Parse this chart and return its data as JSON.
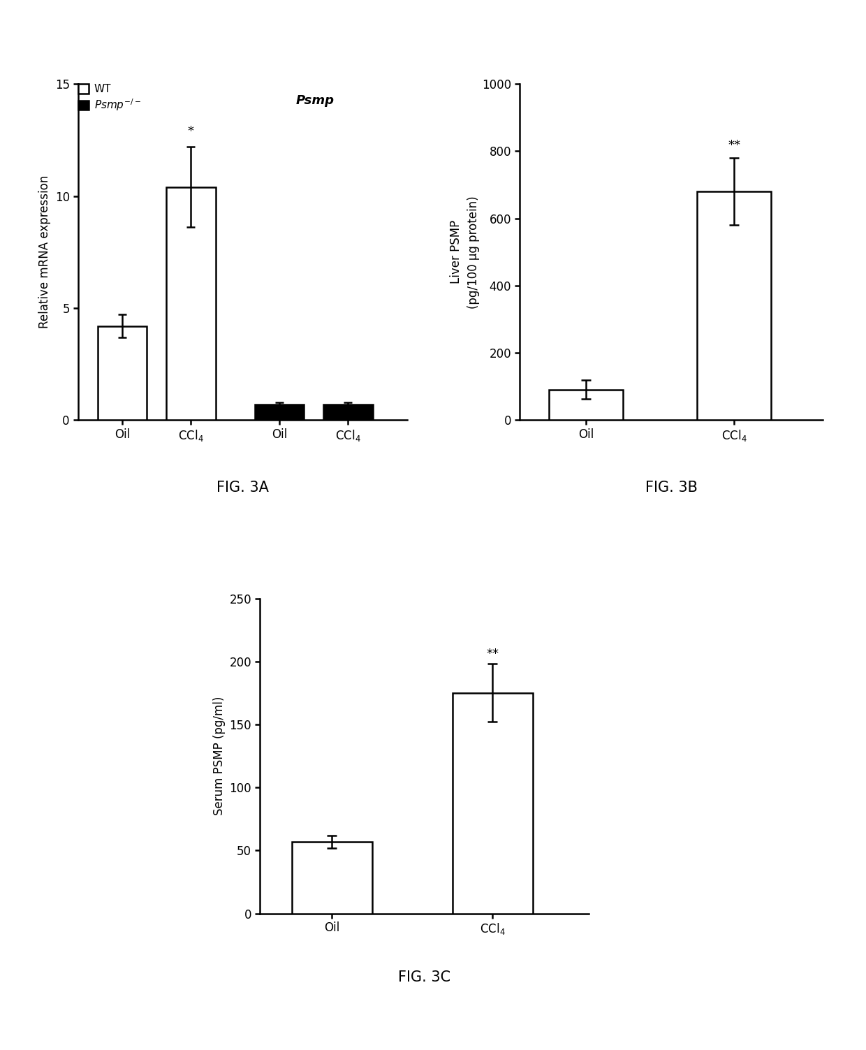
{
  "figA": {
    "categories": [
      "Oil",
      "CCl$_4$",
      "Oil",
      "CCl$_4$"
    ],
    "values": [
      4.2,
      10.4,
      0.7,
      0.7
    ],
    "errors": [
      0.5,
      1.8,
      0.1,
      0.1
    ],
    "colors": [
      "white",
      "white",
      "black",
      "black"
    ],
    "edgecolors": [
      "black",
      "black",
      "black",
      "black"
    ],
    "ylabel": "Relative mRNA expression",
    "ylim": [
      0,
      15
    ],
    "yticks": [
      0,
      5,
      10,
      15
    ],
    "title": "Psmp",
    "sig_text": "*",
    "sig_bar_index": 1,
    "fig_label": "FIG. 3A",
    "x_positions": [
      0.5,
      1.2,
      2.1,
      2.8
    ],
    "xlim": [
      0.05,
      3.4
    ]
  },
  "figB": {
    "categories": [
      "Oil",
      "CCl$_4$"
    ],
    "values": [
      90,
      680
    ],
    "errors": [
      28,
      100
    ],
    "colors": [
      "white",
      "white"
    ],
    "edgecolors": [
      "black",
      "black"
    ],
    "ylabel": "Liver PSMP\n(pg/100 μg protein)",
    "ylim": [
      0,
      1000
    ],
    "yticks": [
      0,
      200,
      400,
      600,
      800,
      1000
    ],
    "sig_text": "**",
    "sig_bar_index": 1,
    "fig_label": "FIG. 3B",
    "x_positions": [
      0.5,
      1.5
    ],
    "xlim": [
      0.05,
      2.1
    ]
  },
  "figC": {
    "categories": [
      "Oil",
      "CCl$_4$"
    ],
    "values": [
      57,
      175
    ],
    "errors": [
      5,
      23
    ],
    "colors": [
      "white",
      "white"
    ],
    "edgecolors": [
      "black",
      "black"
    ],
    "ylabel": "Serum PSMP (pg/ml)",
    "ylim": [
      0,
      250
    ],
    "yticks": [
      0,
      50,
      100,
      150,
      200,
      250
    ],
    "sig_text": "**",
    "sig_bar_index": 1,
    "fig_label": "FIG. 3C",
    "x_positions": [
      0.5,
      1.5
    ],
    "xlim": [
      0.05,
      2.1
    ]
  },
  "background_color": "#ffffff",
  "bar_width": 0.5,
  "linewidth": 1.8,
  "fontsize_ticks": 12,
  "fontsize_label": 12,
  "fontsize_fig_label": 15,
  "fontsize_title": 13,
  "fontsize_sig": 13,
  "legend_fontsize": 11
}
